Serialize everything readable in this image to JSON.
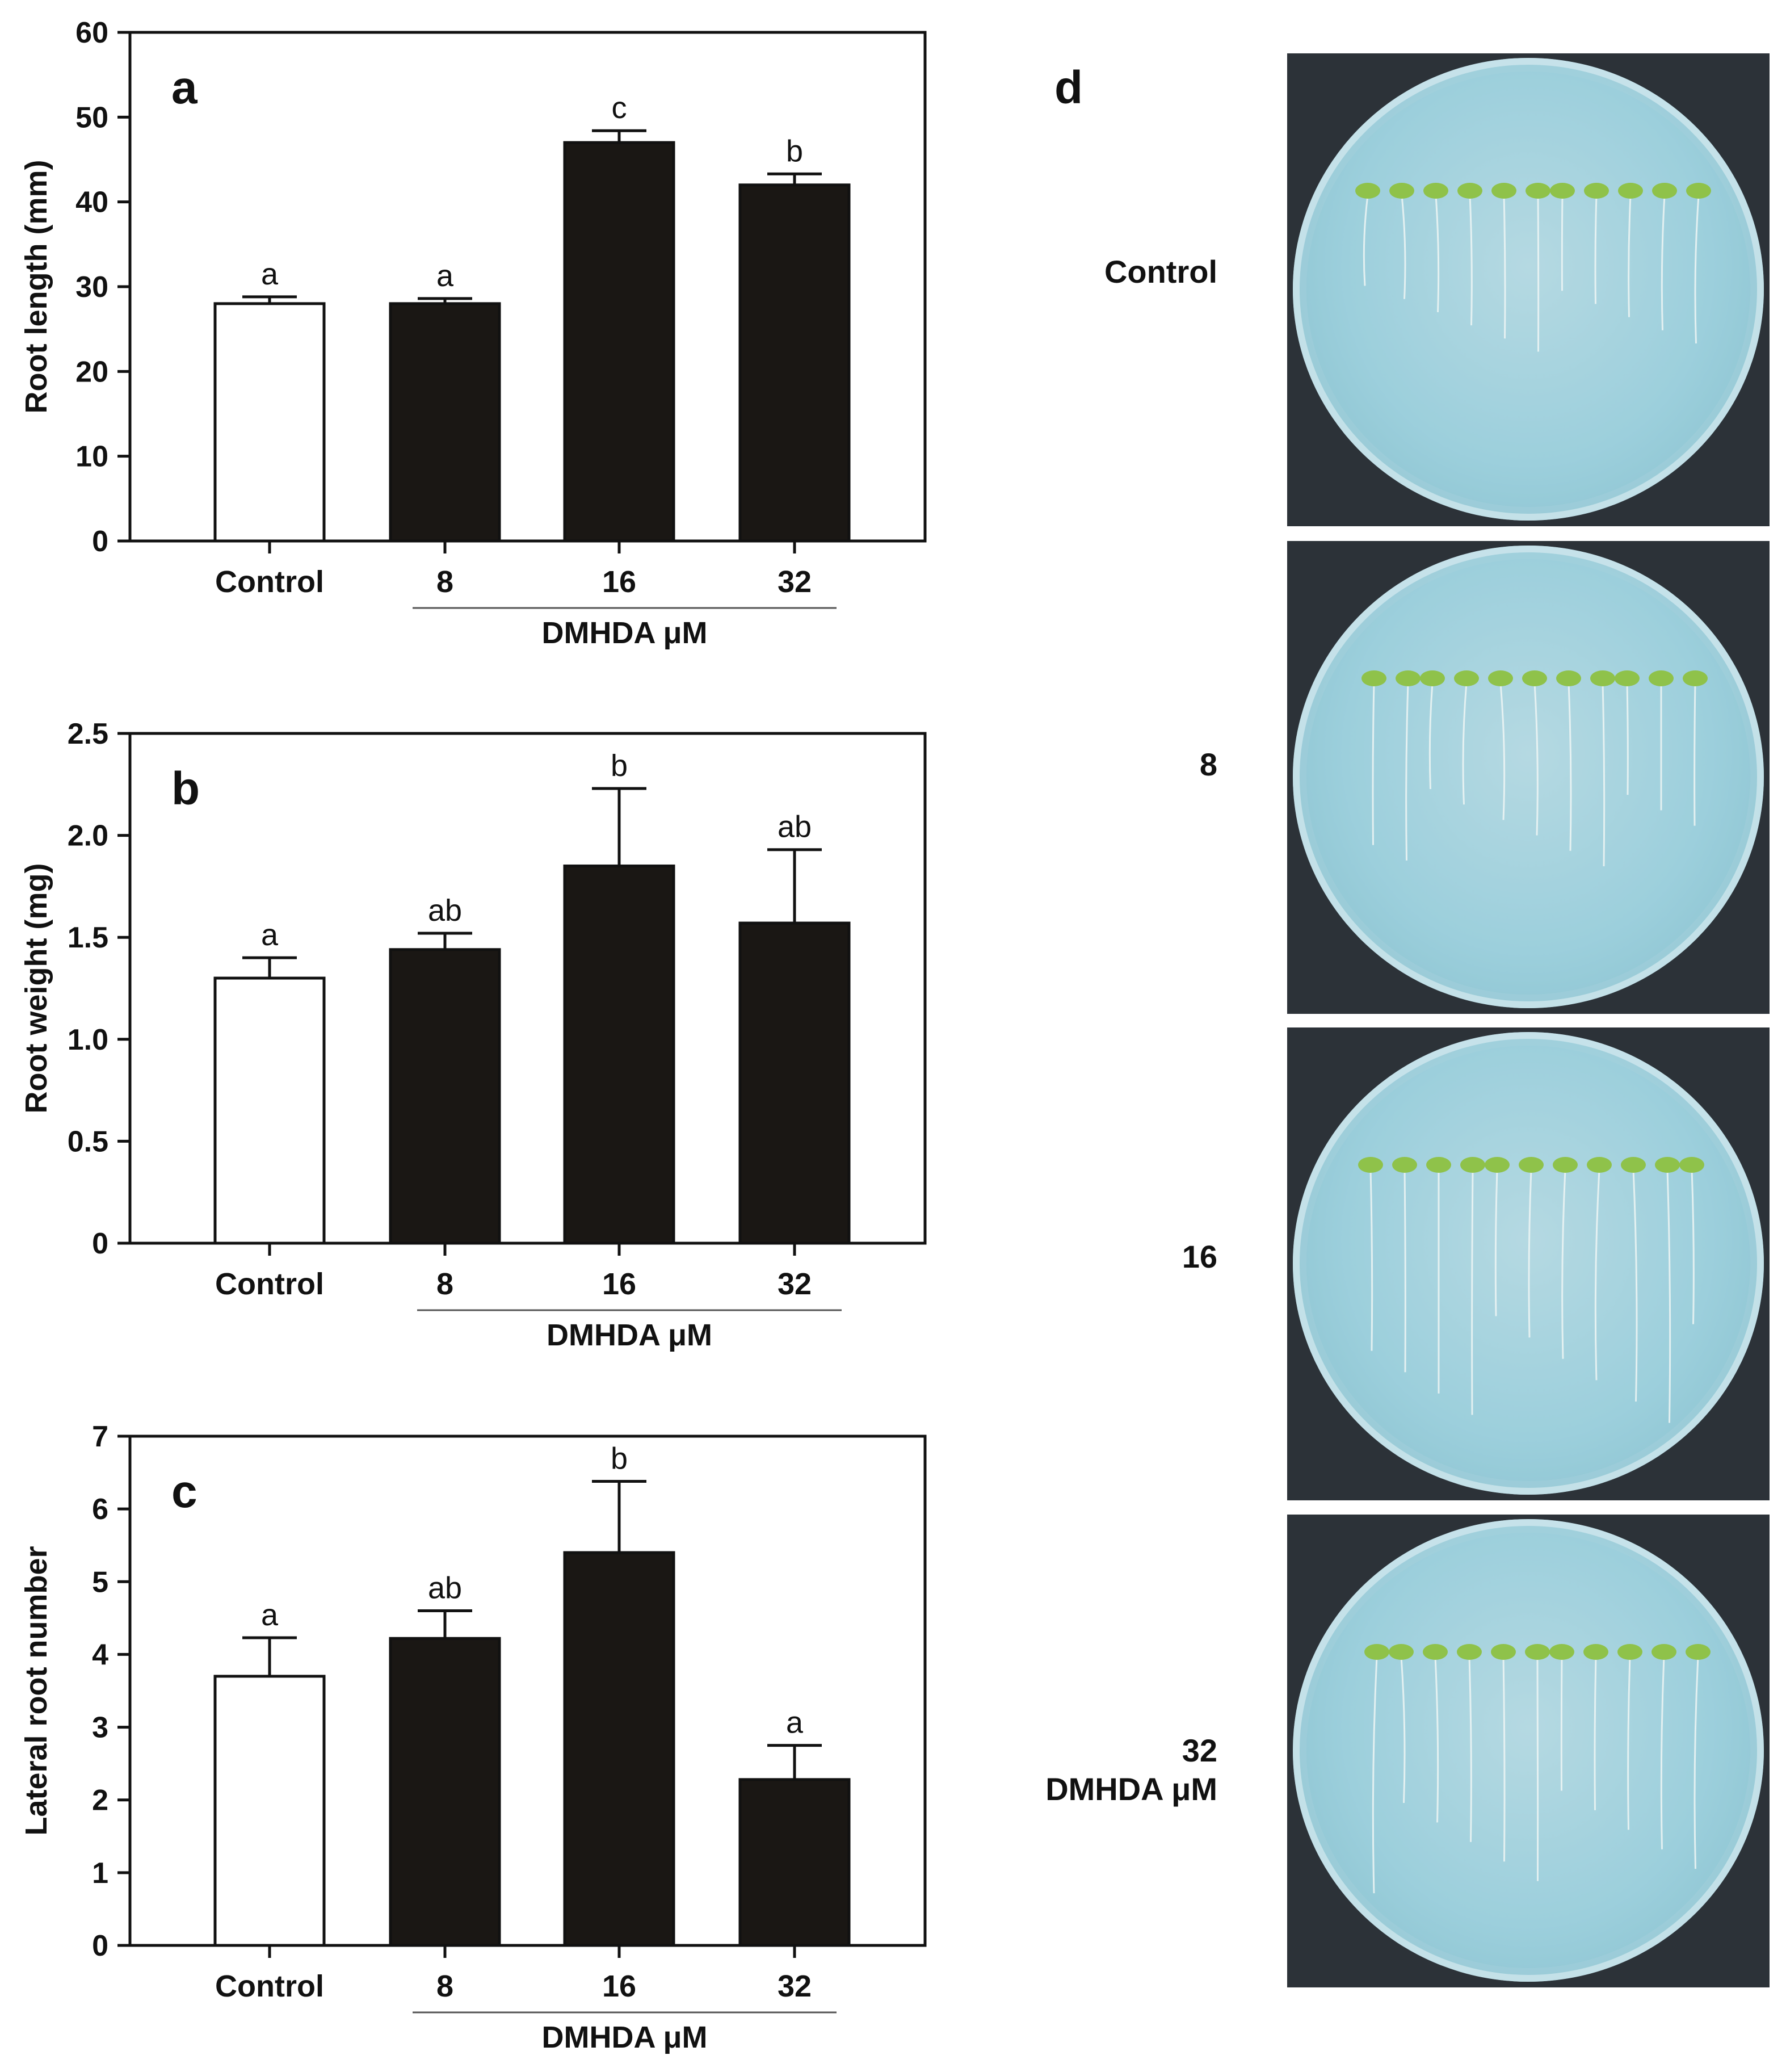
{
  "panel_d_label": "d",
  "plates": [
    {
      "label_lines": [
        "Control"
      ]
    },
    {
      "label_lines": [
        "8"
      ]
    },
    {
      "label_lines": [
        "16"
      ]
    },
    {
      "label_lines": [
        "32",
        "DMHDA μM"
      ]
    }
  ],
  "chart_data": [
    {
      "panel": "a",
      "type": "bar",
      "ylabel": "Root length (mm)",
      "categories": [
        "Control",
        "8",
        "16",
        "32"
      ],
      "group_label": "DMHDA μM",
      "values": [
        28,
        28,
        47,
        42
      ],
      "errors": [
        0.8,
        0.6,
        1.4,
        1.3
      ],
      "significance": [
        "a",
        "a",
        "c",
        "b"
      ],
      "bar_colors": [
        "#ffffff",
        "#1a1714",
        "#1a1714",
        "#1a1714"
      ],
      "ylim": [
        0,
        60
      ],
      "yticks": [
        0,
        10,
        20,
        30,
        40,
        50,
        60
      ],
      "ytick_labels": [
        "0",
        "10",
        "20",
        "30",
        "40",
        "50",
        "60"
      ]
    },
    {
      "panel": "b",
      "type": "bar",
      "ylabel": "Root weight (mg)",
      "categories": [
        "Control",
        "8",
        "16",
        "32"
      ],
      "group_label": "DMHDA μM",
      "values": [
        1.3,
        1.44,
        1.85,
        1.57
      ],
      "errors": [
        0.1,
        0.08,
        0.38,
        0.36
      ],
      "significance": [
        "a",
        "ab",
        "b",
        "ab"
      ],
      "bar_colors": [
        "#ffffff",
        "#1a1714",
        "#1a1714",
        "#1a1714"
      ],
      "ylim": [
        0,
        2.5
      ],
      "yticks": [
        0,
        0.5,
        1.0,
        1.5,
        2.0,
        2.5
      ],
      "ytick_labels": [
        "0",
        "0.5",
        "1.0",
        "1.5",
        "2.0",
        "2.5"
      ]
    },
    {
      "panel": "c",
      "type": "bar",
      "ylabel": "Lateral root number",
      "categories": [
        "Control",
        "8",
        "16",
        "32"
      ],
      "group_label": "DMHDA μM",
      "values": [
        3.7,
        4.22,
        5.4,
        2.28
      ],
      "errors": [
        0.53,
        0.38,
        0.98,
        0.47
      ],
      "significance": [
        "a",
        "ab",
        "b",
        "a"
      ],
      "bar_colors": [
        "#ffffff",
        "#1a1714",
        "#1a1714",
        "#1a1714"
      ],
      "ylim": [
        0,
        7
      ],
      "yticks": [
        0,
        1,
        2,
        3,
        4,
        5,
        6,
        7
      ],
      "ytick_labels": [
        "0",
        "1",
        "2",
        "3",
        "4",
        "5",
        "6",
        "7"
      ]
    }
  ]
}
